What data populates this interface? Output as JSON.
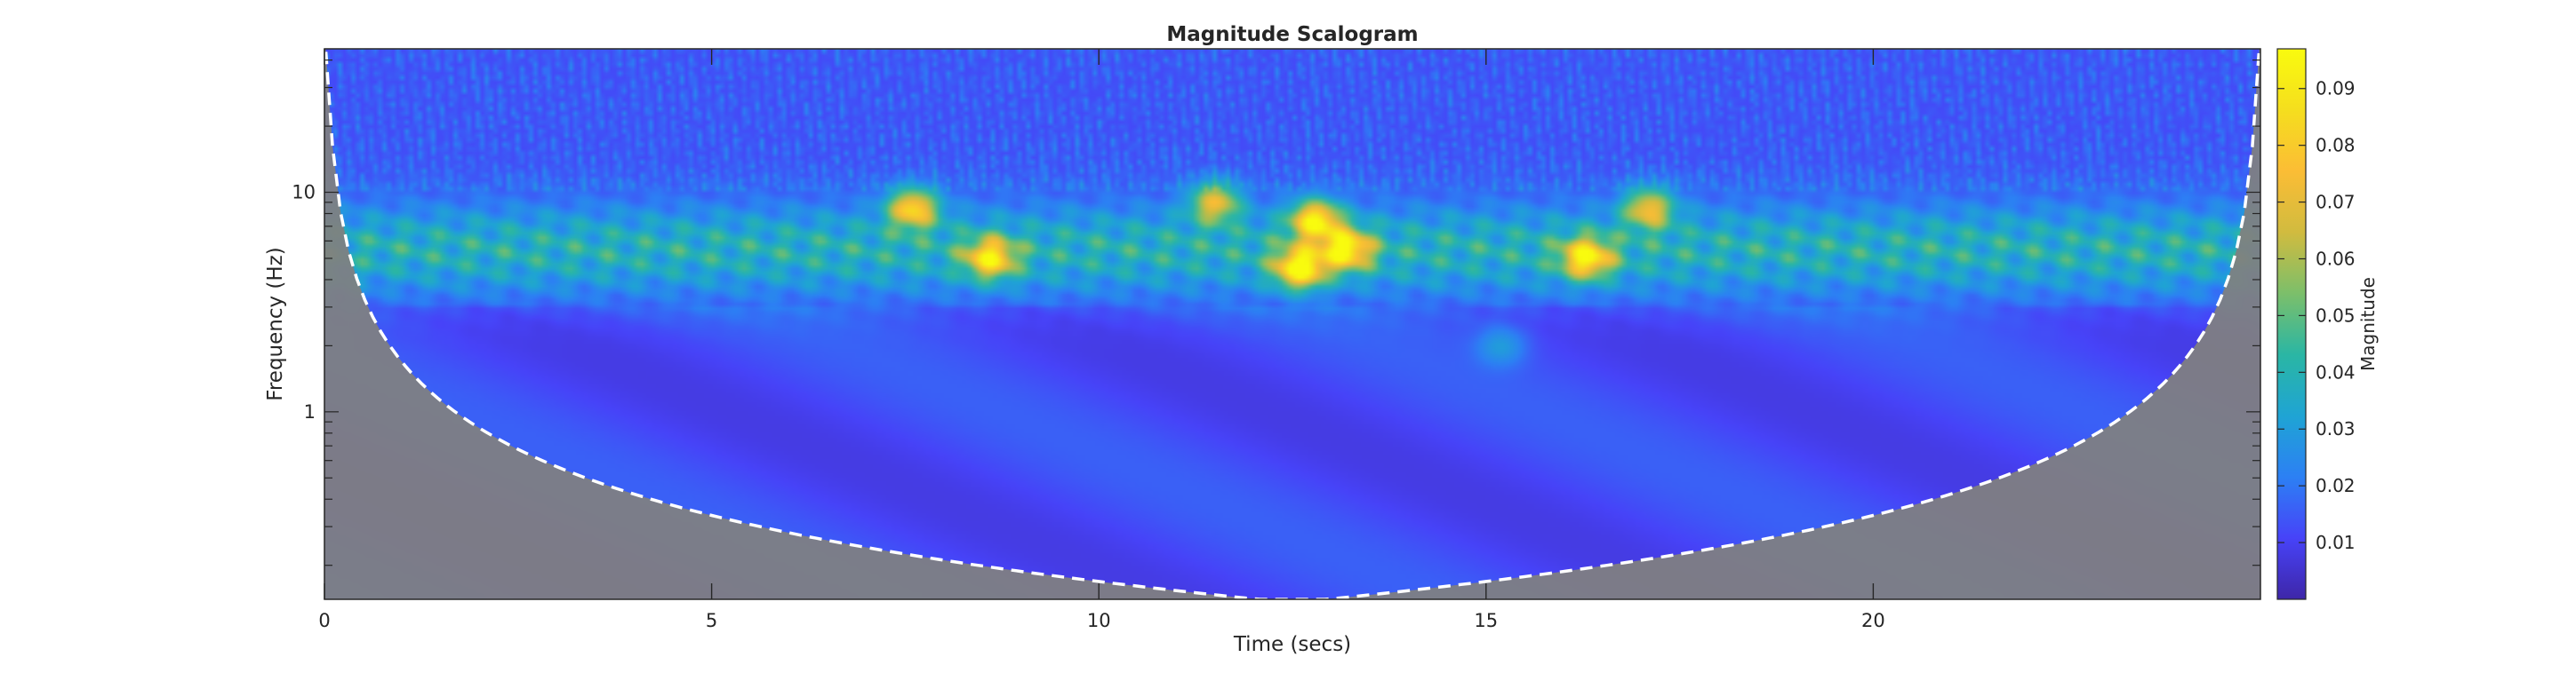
{
  "chart_data": {
    "type": "heatmap",
    "title": "Magnitude Scalogram",
    "xlabel": "Time (secs)",
    "ylabel": "Frequency (Hz)",
    "xlim": [
      0,
      25
    ],
    "ylim": [
      0.14,
      45
    ],
    "yscale": "log",
    "x_ticks": [
      {
        "value": 0,
        "label": "0"
      },
      {
        "value": 5,
        "label": "5"
      },
      {
        "value": 10,
        "label": "10"
      },
      {
        "value": 15,
        "label": "15"
      },
      {
        "value": 20,
        "label": "20"
      }
    ],
    "y_ticks": [
      {
        "value": 1,
        "label": "1"
      },
      {
        "value": 10,
        "label": "10"
      }
    ],
    "colormap": [
      "#3e26a8",
      "#4743f8",
      "#2c80f4",
      "#1fa4d4",
      "#2ab6a4",
      "#7cbf6a",
      "#d1bb3f",
      "#fbbd35",
      "#f5de1e",
      "#f9fb0e"
    ],
    "background_level": 0.012,
    "band": {
      "freq_low": 3.0,
      "freq_high": 10.0,
      "level": 0.03
    },
    "hotspots": [
      {
        "time": 7.6,
        "freq": 8.5,
        "magnitude": 0.08
      },
      {
        "time": 8.6,
        "freq": 5.0,
        "magnitude": 0.075
      },
      {
        "time": 11.5,
        "freq": 9.0,
        "magnitude": 0.07
      },
      {
        "time": 12.6,
        "freq": 4.5,
        "magnitude": 0.09
      },
      {
        "time": 12.8,
        "freq": 7.5,
        "magnitude": 0.085
      },
      {
        "time": 13.2,
        "freq": 5.5,
        "magnitude": 0.08
      },
      {
        "time": 16.3,
        "freq": 5.0,
        "magnitude": 0.08
      },
      {
        "time": 17.1,
        "freq": 8.5,
        "magnitude": 0.07
      },
      {
        "time": 15.2,
        "freq": 2.0,
        "magnitude": 0.035
      }
    ],
    "coi": {
      "shade_color": "#808080",
      "line_color": "#ffffff",
      "min_freq": 0.135
    },
    "colorbar": {
      "label": "Magnitude",
      "range": [
        0,
        0.097
      ],
      "ticks": [
        {
          "value": 0.01,
          "label": "0.01"
        },
        {
          "value": 0.02,
          "label": "0.02"
        },
        {
          "value": 0.03,
          "label": "0.03"
        },
        {
          "value": 0.04,
          "label": "0.04"
        },
        {
          "value": 0.05,
          "label": "0.05"
        },
        {
          "value": 0.06,
          "label": "0.06"
        },
        {
          "value": 0.07,
          "label": "0.07"
        },
        {
          "value": 0.08,
          "label": "0.08"
        },
        {
          "value": 0.09,
          "label": "0.09"
        }
      ]
    }
  }
}
